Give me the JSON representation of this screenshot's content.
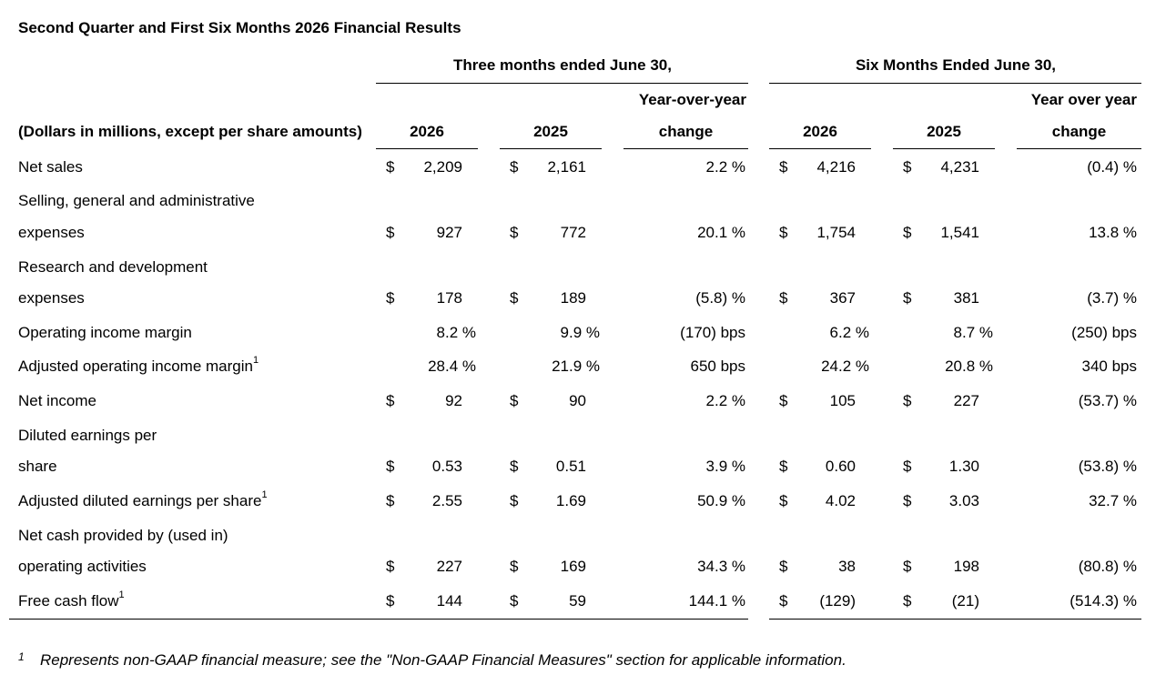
{
  "title": "Second Quarter and First Six Months 2026 Financial Results",
  "header": {
    "group_three_months": "Three months ended June 30,",
    "group_six_months": "Six Months Ended June 30,",
    "row_label": "(Dollars in millions, except per share amounts)",
    "q_2026": "2026",
    "q_2025": "2025",
    "q_change_line1": "Year-over-year",
    "q_change_line2": "change",
    "s_2026": "2026",
    "s_2025": "2025",
    "s_change_line1": "Year over year",
    "s_change_line2": "change"
  },
  "rows": [
    {
      "label1": "Net sales",
      "label2": "",
      "sup": "",
      "q26_sign": "$",
      "q26": "2,209",
      "q25_sign": "$",
      "q25": "2,161",
      "q_chg": "2.2 %",
      "s26_sign": "$",
      "s26": "4,216",
      "s25_sign": "$",
      "s25": "4,231",
      "s_chg": "(0.4) %"
    },
    {
      "label1": "Selling, general and administrative",
      "label2": "expenses",
      "sup": "",
      "q26_sign": "$",
      "q26": "927",
      "q25_sign": "$",
      "q25": "772",
      "q_chg": "20.1 %",
      "s26_sign": "$",
      "s26": "1,754",
      "s25_sign": "$",
      "s25": "1,541",
      "s_chg": "13.8 %"
    },
    {
      "label1": "Research and development",
      "label2": "expenses",
      "sup": "",
      "q26_sign": "$",
      "q26": "178",
      "q25_sign": "$",
      "q25": "189",
      "q_chg": "(5.8) %",
      "s26_sign": "$",
      "s26": "367",
      "s25_sign": "$",
      "s25": "381",
      "s_chg": "(3.7) %"
    },
    {
      "label1": "Operating income margin",
      "label2": "",
      "sup": "",
      "q26_sign": "",
      "q26": "8.2 %",
      "q25_sign": "",
      "q25": "9.9 %",
      "q_chg": "(170) bps",
      "s26_sign": "",
      "s26": "6.2 %",
      "s25_sign": "",
      "s25": "8.7 %",
      "s_chg": "(250) bps"
    },
    {
      "label1": "Adjusted operating income margin",
      "label2": "",
      "sup": "1",
      "q26_sign": "",
      "q26": "28.4 %",
      "q25_sign": "",
      "q25": "21.9 %",
      "q_chg": "650 bps",
      "s26_sign": "",
      "s26": "24.2 %",
      "s25_sign": "",
      "s25": "20.8 %",
      "s_chg": "340 bps"
    },
    {
      "label1": "Net income",
      "label2": "",
      "sup": "",
      "q26_sign": "$",
      "q26": "92",
      "q25_sign": "$",
      "q25": "90",
      "q_chg": "2.2 %",
      "s26_sign": "$",
      "s26": "105",
      "s25_sign": "$",
      "s25": "227",
      "s_chg": "(53.7) %"
    },
    {
      "label1": "Diluted earnings per",
      "label2": "share",
      "sup": "",
      "q26_sign": "$",
      "q26": "0.53",
      "q25_sign": "$",
      "q25": "0.51",
      "q_chg": "3.9 %",
      "s26_sign": "$",
      "s26": "0.60",
      "s25_sign": "$",
      "s25": "1.30",
      "s_chg": "(53.8) %"
    },
    {
      "label1": "Adjusted diluted earnings per share",
      "label2": "",
      "sup": "1",
      "q26_sign": "$",
      "q26": "2.55",
      "q25_sign": "$",
      "q25": "1.69",
      "q_chg": "50.9 %",
      "s26_sign": "$",
      "s26": "4.02",
      "s25_sign": "$",
      "s25": "3.03",
      "s_chg": "32.7 %"
    },
    {
      "label1": "Net cash provided by (used in)",
      "label2": "operating activities",
      "sup": "",
      "q26_sign": "$",
      "q26": "227",
      "q25_sign": "$",
      "q25": "169",
      "q_chg": "34.3 %",
      "s26_sign": "$",
      "s26": "38",
      "s25_sign": "$",
      "s25": "198",
      "s_chg": "(80.8) %"
    },
    {
      "label1": "Free cash flow",
      "label2": "",
      "sup": "1",
      "q26_sign": "$",
      "q26": "144",
      "q25_sign": "$",
      "q25": "59",
      "q_chg": "144.1 %",
      "s26_sign": "$",
      "s26": "(129)",
      "s25_sign": "$",
      "s25": "(21)",
      "s_chg": "(514.3) %"
    }
  ],
  "footnote": {
    "marker": "1",
    "text": "Represents non-GAAP financial measure; see the \"Non-GAAP Financial Measures\" section for applicable information."
  }
}
